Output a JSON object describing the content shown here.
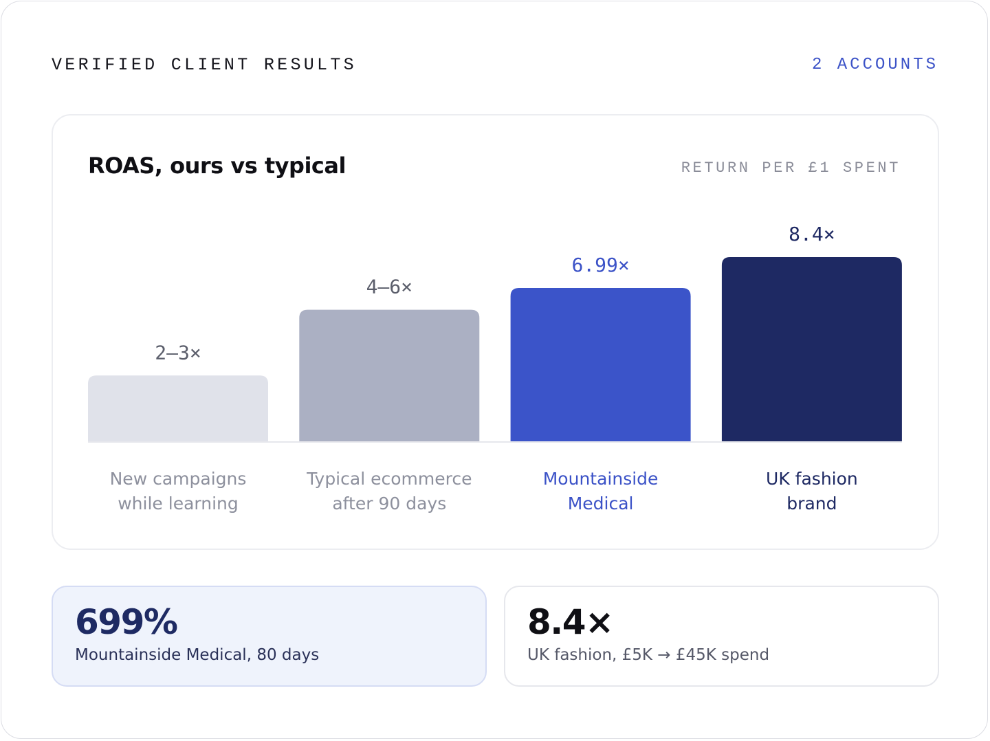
{
  "header": {
    "title": "VERIFIED CLIENT RESULTS",
    "count": "2 ACCOUNTS"
  },
  "chart_data": {
    "type": "bar",
    "title": "ROAS, ours vs typical",
    "unit_label": "RETURN PER £1 SPENT",
    "categories": [
      [
        "New campaigns",
        "while learning"
      ],
      [
        "Typical ecommerce",
        "after 90 days"
      ],
      [
        "Mountainside",
        "Medical"
      ],
      [
        "UK fashion",
        "brand"
      ]
    ],
    "values": [
      3,
      6,
      6.99,
      8.4
    ],
    "value_labels": [
      "2–3×",
      "4–6×",
      "6.99×",
      "8.4×"
    ],
    "ylim": [
      0,
      8.4
    ],
    "colors": [
      "#e0e2ea",
      "#abb0c3",
      "#3b54c9",
      "#1e2963"
    ],
    "label_colors": [
      "#8d909d",
      "#8d909d",
      "#3b52c7",
      "#1e2963"
    ],
    "value_label_colors": [
      "#5b5e6b",
      "#5b5e6b",
      "#3b52c7",
      "#1e2963"
    ],
    "grid": false,
    "legend": "none"
  },
  "stats": [
    {
      "value": "699%",
      "caption": "Mountainside Medical, 80 days"
    },
    {
      "value": "8.4×",
      "caption": "UK fashion, £5K → £45K spend"
    }
  ]
}
